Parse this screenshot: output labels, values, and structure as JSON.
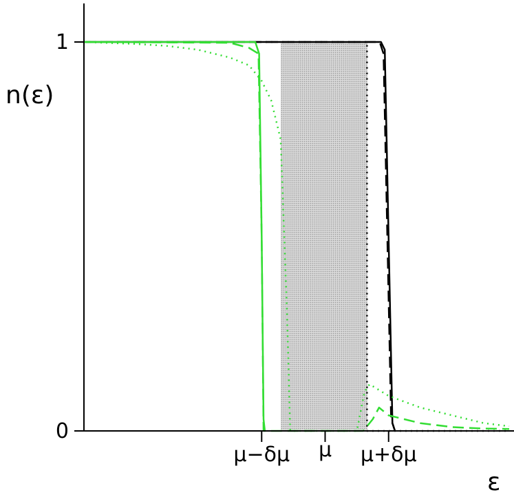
{
  "chart_data": {
    "type": "line",
    "title": "",
    "ylabel": "n(ε)",
    "xlabel": "ε",
    "xlim": [
      -3.8,
      2.9
    ],
    "ylim": [
      0,
      1
    ],
    "grid": false,
    "legend": "none",
    "yticks": [
      {
        "value": 0,
        "label": "0"
      },
      {
        "value": 1,
        "label": "1"
      }
    ],
    "xticks": [
      {
        "value": -1,
        "label": "μ−δμ"
      },
      {
        "value": 0,
        "label": "μ"
      },
      {
        "value": 1,
        "label": "μ+δμ"
      }
    ],
    "shaded_band": {
      "from": -0.7,
      "to": 0.67,
      "color": "#9a9a9a"
    },
    "colors": {
      "black": "#000000",
      "green": "#33dd33"
    },
    "series": [
      {
        "color": "#000000",
        "style": "solid",
        "x": [
          -3.8,
          0.88,
          0.94,
          1.0,
          1.06,
          1.1
        ],
        "y": [
          1,
          1,
          0.98,
          0.5,
          0.02,
          0
        ]
      },
      {
        "color": "#000000",
        "style": "dashed",
        "x": [
          -3.8,
          0.86,
          0.92,
          0.98,
          1.04,
          1.1
        ],
        "y": [
          1,
          1,
          0.97,
          0.5,
          0.03,
          0
        ]
      },
      {
        "color": "#000000",
        "style": "dotted",
        "x": [
          -3.8,
          -0.72,
          -0.72,
          0.66,
          0.66,
          2.9
        ],
        "y": [
          1,
          1,
          1,
          1,
          0,
          0
        ]
      },
      {
        "color": "#33dd33",
        "style": "solid",
        "x": [
          -3.8,
          -1.1,
          -1.04,
          -1.0,
          -0.97,
          -0.95
        ],
        "y": [
          1,
          1,
          0.97,
          0.5,
          0.03,
          0
        ]
      },
      {
        "color": "#33dd33",
        "style": "dashed",
        "x": [
          -3.8,
          -1.5,
          -1.2,
          -1.05,
          -1.0,
          -0.97,
          -0.93,
          -0.85,
          0.6,
          0.75,
          0.85,
          1.0,
          1.5,
          2.0,
          2.5,
          2.9
        ],
        "y": [
          1,
          0.998,
          0.985,
          0.97,
          0.5,
          0.0,
          0.0,
          0.0,
          0.0,
          0.03,
          0.06,
          0.04,
          0.02,
          0.01,
          0.006,
          0.005
        ]
      },
      {
        "color": "#33dd33",
        "style": "dotted",
        "x": [
          -3.8,
          -3.0,
          -2.5,
          -2.0,
          -1.5,
          -1.2,
          -1.0,
          -0.85,
          -0.7,
          -0.6,
          -0.55,
          0.5,
          0.62,
          0.7,
          1.0,
          1.5,
          2.0,
          2.5,
          2.9
        ],
        "y": [
          1,
          0.995,
          0.99,
          0.98,
          0.96,
          0.94,
          0.9,
          0.85,
          0.75,
          0.3,
          0.0,
          0.0,
          0.1,
          0.12,
          0.09,
          0.06,
          0.04,
          0.02,
          0.012
        ]
      }
    ]
  }
}
